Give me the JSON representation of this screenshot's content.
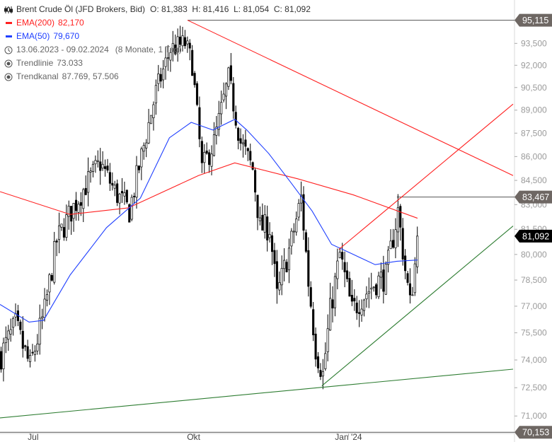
{
  "legend": {
    "instrument": "Brent Crude Öl (JFD Brokers, Bid)",
    "ohlc": "O: 81,383  H: 81,416  L: 81,054  C: 81,092",
    "ema200_label": "EMA(200)",
    "ema200_value": "82,170",
    "ema50_label": "EMA(50)",
    "ema50_value": "79,670",
    "range": "13.06.2023 - 09.02.2024",
    "range_span": "(8 Monate, 1 Tag)",
    "trendline_label": "Trendlinie",
    "trendline_value": "73.033",
    "trendchannel_label": "Trendkanal",
    "trendchannel_value": "87.769, 57.506"
  },
  "colors": {
    "ema200": "#ff2020",
    "ema50": "#2040ff",
    "trend_red": "#ff2020",
    "trend_green": "#2e7d32",
    "badge": "#6e6763",
    "last": "#000000"
  },
  "chart_data": {
    "type": "candlestick",
    "scale": "log",
    "ylim": [
      70.153,
      95.115
    ],
    "y_ticks": [
      "93,500",
      "92,000",
      "90,500",
      "89,000",
      "87,500",
      "86,000",
      "84,500",
      "83,000",
      "81,500",
      "80,000",
      "78,500",
      "77,000",
      "75,500",
      "74,000",
      "72,500",
      "71,000"
    ],
    "y_tick_values": [
      93.5,
      92,
      90.5,
      89,
      87.5,
      86,
      84.5,
      83,
      81.5,
      80,
      78.5,
      77,
      75.5,
      74,
      72.5,
      71
    ],
    "x_ticks": [
      {
        "label": "Jul",
        "day": 13.7
      },
      {
        "label": "Okt",
        "day": 80
      },
      {
        "label": "Jan '24",
        "day": 144
      }
    ],
    "total_days": 212,
    "close_path": [
      [
        0,
        74.3
      ],
      [
        6,
        75.9
      ],
      [
        12,
        73.6
      ],
      [
        18,
        76.7
      ],
      [
        23,
        80.8
      ],
      [
        29,
        82.6
      ],
      [
        35,
        84.2
      ],
      [
        41,
        85.6
      ],
      [
        47,
        83.8
      ],
      [
        53,
        82.6
      ],
      [
        58,
        86.0
      ],
      [
        64,
        90.2
      ],
      [
        70,
        93.1
      ],
      [
        76,
        93.5
      ],
      [
        79,
        92.1
      ],
      [
        83,
        85.2
      ],
      [
        88,
        86.9
      ],
      [
        94,
        91.1
      ],
      [
        99,
        86.9
      ],
      [
        104,
        85.2
      ],
      [
        107,
        81.6
      ],
      [
        111,
        81.6
      ],
      [
        114,
        77.5
      ],
      [
        120,
        80.8
      ],
      [
        124,
        83.4
      ],
      [
        127,
        78.4
      ],
      [
        130,
        74.7
      ],
      [
        133,
        73.2
      ],
      [
        136,
        76.7
      ],
      [
        140,
        80.0
      ],
      [
        145,
        76.7
      ],
      [
        149,
        77.5
      ],
      [
        155,
        78.4
      ],
      [
        159,
        78.7
      ],
      [
        164,
        82.6
      ],
      [
        167,
        79.1
      ],
      [
        169,
        77.1
      ],
      [
        172.5,
        81.09
      ]
    ],
    "ema200": [
      [
        0,
        83.8
      ],
      [
        29,
        82.4
      ],
      [
        53,
        82.8
      ],
      [
        82,
        84.8
      ],
      [
        97,
        85.6
      ],
      [
        123,
        84.6
      ],
      [
        146,
        83.6
      ],
      [
        172.5,
        82.17
      ]
    ],
    "ema50": [
      [
        0,
        77.1
      ],
      [
        12,
        76.1
      ],
      [
        18,
        76.2
      ],
      [
        29,
        78.8
      ],
      [
        44,
        81.6
      ],
      [
        58,
        83.4
      ],
      [
        70,
        87.2
      ],
      [
        79,
        88.2
      ],
      [
        88,
        87.7
      ],
      [
        97,
        88.4
      ],
      [
        102,
        87.7
      ],
      [
        111,
        86.2
      ],
      [
        120,
        84.4
      ],
      [
        129,
        82.6
      ],
      [
        137,
        80.6
      ],
      [
        146,
        80.0
      ],
      [
        155,
        79.4
      ],
      [
        164,
        79.6
      ],
      [
        172.5,
        79.67
      ]
    ],
    "trendlines": [
      {
        "color": "red",
        "points": [
          [
            77.5,
            95.115
          ],
          [
            212,
            84.8
          ]
        ]
      },
      {
        "color": "red",
        "points": [
          [
            140,
            80.3
          ],
          [
            212,
            89.4
          ]
        ]
      },
      {
        "color": "green",
        "points": [
          [
            133,
            72.6
          ],
          [
            212,
            81.7
          ]
        ]
      },
      {
        "color": "green",
        "points": [
          [
            0,
            70.9
          ],
          [
            212,
            73.5
          ]
        ]
      }
    ],
    "levels": [
      {
        "value": 95.115,
        "label": "95,115",
        "from_day": 77.5
      },
      {
        "value": 83.467,
        "label": "83,467",
        "from_day": 164
      },
      {
        "value": 70.153,
        "label": "70,153",
        "from_day": 0
      }
    ],
    "last": {
      "value": 81.092,
      "label": "81,092"
    }
  }
}
